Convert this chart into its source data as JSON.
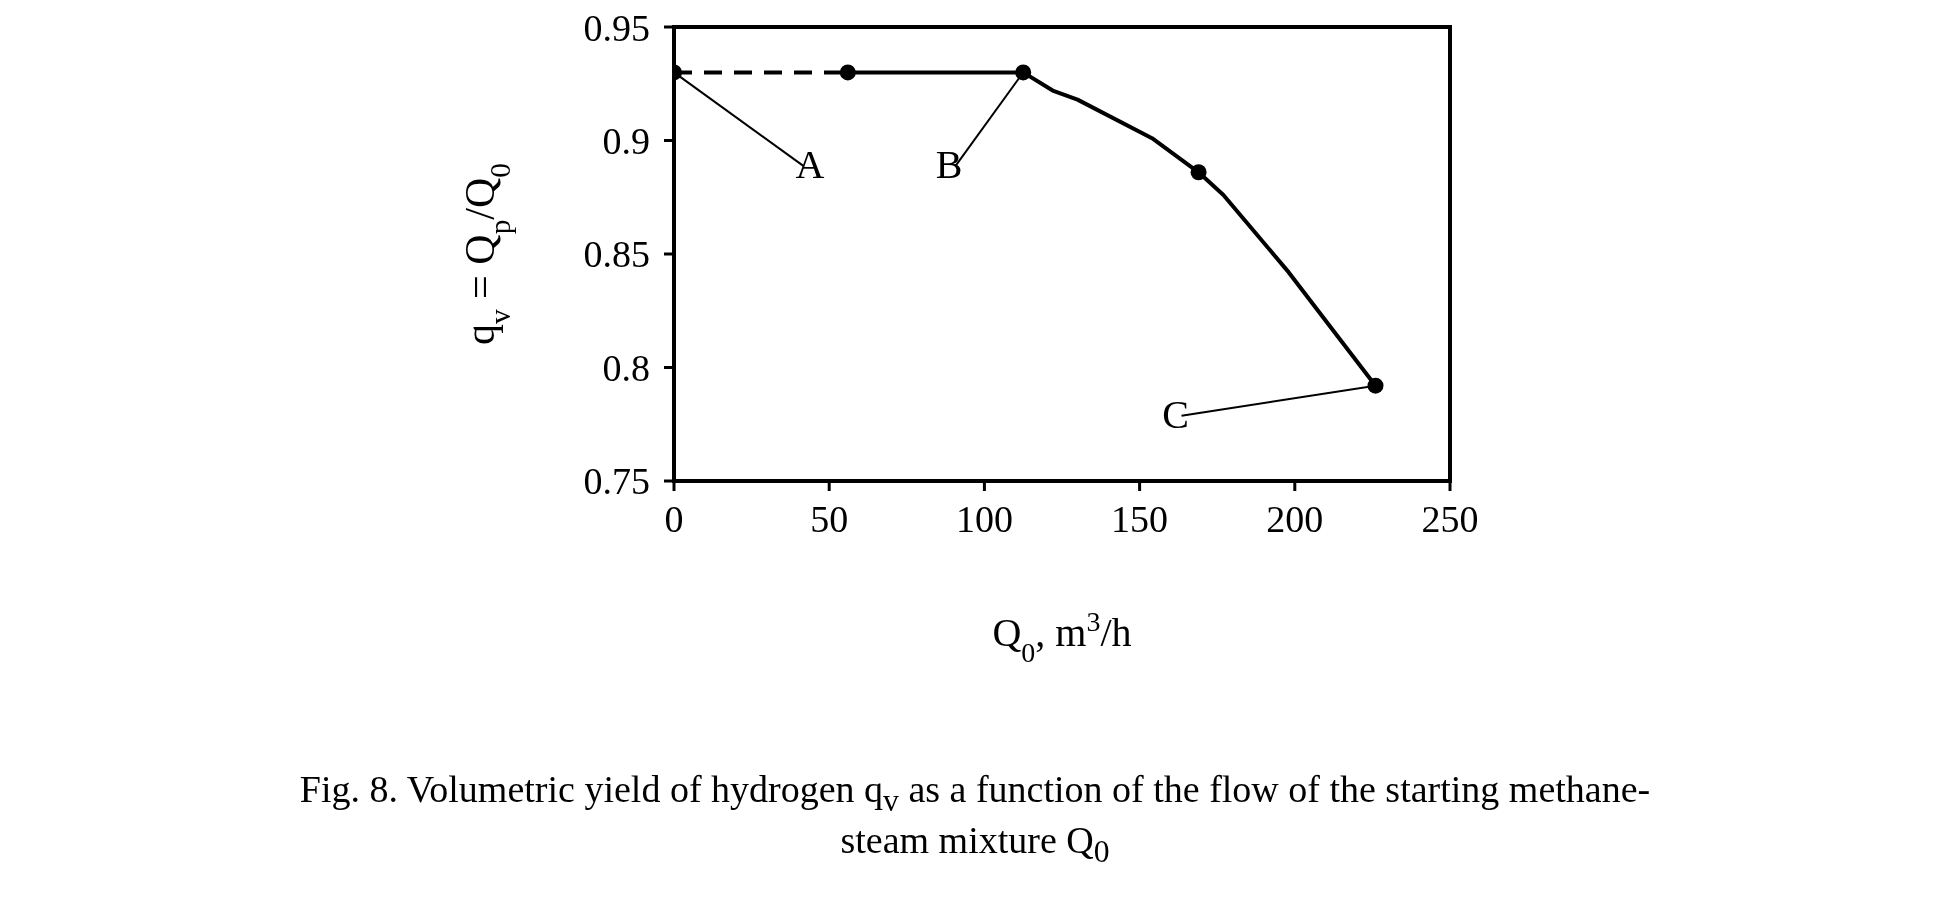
{
  "chart_data": {
    "type": "line",
    "title": "Fig. 8. Volumetric yield of hydrogen q$_{v}$ as a function of the flow of the starting methane-steam mixture Q$_{0}$",
    "xlabel": "Q$_{0}$, m$^{3}$/h",
    "ylabel": "q$_{v}$ = Q$_{p}$/Q$_{0}$",
    "xlim": [
      0,
      250
    ],
    "xticks": [
      0,
      50,
      100,
      150,
      200,
      250
    ],
    "ylim": [
      0.75,
      0.95
    ],
    "yticks": [
      0.75,
      0.8,
      0.85,
      0.9,
      0.95
    ],
    "grid": false,
    "series": [
      {
        "color": "#000000",
        "line_style": "dashed",
        "marker": "none",
        "x": [
          0,
          56
        ],
        "values": [
          0.93,
          0.93
        ]
      },
      {
        "color": "#000000",
        "line_style": "solid",
        "marker": "none",
        "x": [
          56,
          112.5,
          122,
          130,
          154,
          169,
          177,
          198,
          226
        ],
        "values": [
          0.93,
          0.93,
          0.922,
          0.918,
          0.901,
          0.886,
          0.876,
          0.842,
          0.792
        ]
      },
      {
        "type": "scatter",
        "color": "#000000",
        "marker": "circle",
        "x": [
          0,
          56,
          112.5,
          169,
          226
        ],
        "values": [
          0.93,
          0.93,
          0.93,
          0.886,
          0.792
        ]
      }
    ],
    "annotations": [
      {
        "text": "A",
        "x": 0,
        "y": 0.93
      },
      {
        "text": "B",
        "x": 112.5,
        "y": 0.93
      },
      {
        "text": "C",
        "x": 226,
        "y": 0.792
      }
    ]
  }
}
